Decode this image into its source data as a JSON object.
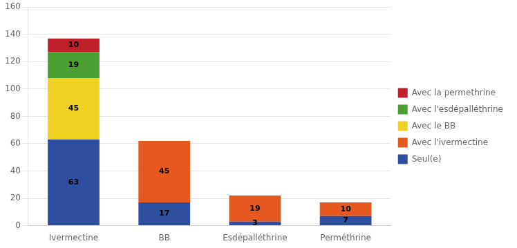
{
  "chart_data": {
    "type": "bar",
    "stacked": true,
    "categories": [
      "Ivermectine",
      "BB",
      "Esdépalléthrine",
      "Perméthrine"
    ],
    "series": [
      {
        "name": "Seul(e)",
        "color": "#2e4fa0",
        "values": [
          63,
          17,
          3,
          7
        ]
      },
      {
        "name": "Avec l'ivermectine",
        "color": "#e55820",
        "values": [
          0,
          45,
          19,
          10
        ]
      },
      {
        "name": "Avec le BB",
        "color": "#f0d020",
        "values": [
          45,
          0,
          0,
          0
        ]
      },
      {
        "name": "Avec l'esdépalléthrine",
        "color": "#4aa030",
        "values": [
          19,
          0,
          0,
          0
        ]
      },
      {
        "name": "Avec la permethrine",
        "color": "#c0202a",
        "values": [
          10,
          0,
          0,
          0
        ]
      }
    ],
    "ylim": [
      0,
      160
    ],
    "yticks": [
      0,
      20,
      40,
      60,
      80,
      100,
      120,
      140,
      160
    ],
    "grid": true,
    "legend": "right",
    "data_labels": true
  }
}
